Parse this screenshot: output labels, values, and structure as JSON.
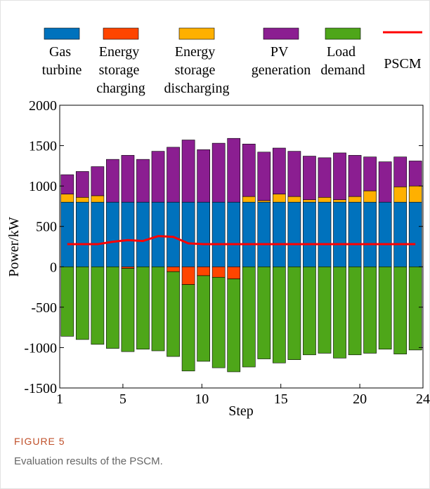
{
  "chart_data": {
    "type": "stacked-bar",
    "caption_label": "FIGURE 5",
    "caption": "Evaluation results of the PSCM.",
    "xlabel": "Step",
    "ylabel": "Power/kW",
    "x": [
      1,
      2,
      3,
      4,
      5,
      6,
      7,
      8,
      9,
      10,
      11,
      12,
      13,
      14,
      15,
      16,
      17,
      18,
      19,
      20,
      21,
      22,
      23,
      24
    ],
    "xlim": [
      1,
      24
    ],
    "xticks": [
      1,
      5,
      10,
      15,
      20,
      24
    ],
    "ylim": [
      -1500,
      2000
    ],
    "yticks": [
      -1500,
      -1000,
      -500,
      0,
      500,
      1000,
      1500,
      2000
    ],
    "series": [
      {
        "name": "Gas turbine",
        "color": "#0072bd",
        "values": [
          800,
          800,
          800,
          800,
          800,
          800,
          800,
          800,
          800,
          800,
          800,
          800,
          800,
          800,
          800,
          800,
          800,
          800,
          800,
          800,
          800,
          800,
          800,
          800
        ]
      },
      {
        "name": "Energy storage charging",
        "color": "#ff4500",
        "values": [
          0,
          0,
          0,
          0,
          -20,
          0,
          0,
          -60,
          -220,
          -110,
          -130,
          -150,
          0,
          0,
          0,
          0,
          0,
          0,
          0,
          0,
          0,
          0,
          0,
          0
        ]
      },
      {
        "name": "Energy storage discharging",
        "color": "#ffb000",
        "values": [
          100,
          60,
          80,
          0,
          0,
          0,
          0,
          0,
          0,
          0,
          0,
          0,
          70,
          20,
          100,
          70,
          30,
          60,
          30,
          70,
          140,
          0,
          190,
          200
        ]
      },
      {
        "name": "PV generation",
        "color": "#8b1e91",
        "values": [
          240,
          320,
          360,
          530,
          580,
          530,
          630,
          680,
          770,
          650,
          730,
          790,
          650,
          600,
          570,
          560,
          540,
          490,
          580,
          510,
          420,
          500,
          370,
          310
        ]
      },
      {
        "name": "Load demand",
        "color": "#4ea619",
        "values": [
          -860,
          -900,
          -960,
          -1010,
          -1030,
          -1020,
          -1040,
          -1050,
          -1070,
          -1060,
          -1120,
          -1150,
          -1240,
          -1140,
          -1190,
          -1150,
          -1090,
          -1070,
          -1130,
          -1090,
          -1070,
          -1020,
          -1080,
          -1030
        ]
      },
      {
        "name": "PSCM",
        "type": "line",
        "color": "#ff0000",
        "values": [
          280,
          280,
          280,
          310,
          330,
          320,
          380,
          370,
          290,
          280,
          280,
          280,
          280,
          280,
          280,
          280,
          280,
          280,
          280,
          280,
          280,
          280,
          280,
          280
        ]
      }
    ]
  }
}
